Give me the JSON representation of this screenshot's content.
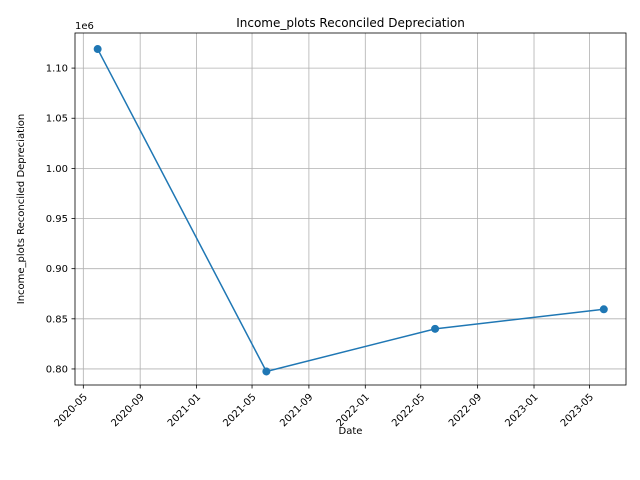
{
  "chart_data": {
    "type": "line",
    "title": "Income_plots Reconciled Depreciation",
    "xlabel": "Date",
    "ylabel": "Income_plots Reconciled Depreciation",
    "y_offset_label": "1e6",
    "x": [
      "2020-06-01",
      "2021-06-01",
      "2022-06-01",
      "2023-06-01"
    ],
    "series": [
      {
        "values": [
          1119000,
          797500,
          840000,
          859500
        ]
      }
    ],
    "xlim": [
      "2020-04-13",
      "2023-07-19"
    ],
    "ylim": [
      784000,
      1135000
    ],
    "x_ticks": [
      "2020-05-01",
      "2020-09-01",
      "2021-01-01",
      "2021-05-01",
      "2021-09-01",
      "2022-01-01",
      "2022-05-01",
      "2022-09-01",
      "2023-01-01",
      "2023-05-01"
    ],
    "x_tick_labels": [
      "2020-05",
      "2020-09",
      "2021-01",
      "2021-05",
      "2021-09",
      "2022-01",
      "2022-05",
      "2022-09",
      "2023-01",
      "2023-05"
    ],
    "y_ticks": [
      800000,
      850000,
      900000,
      950000,
      1000000,
      1050000,
      1100000
    ],
    "y_tick_labels": [
      "0.80",
      "0.85",
      "0.90",
      "0.95",
      "1.00",
      "1.05",
      "1.10"
    ],
    "grid": true,
    "line_color": "#1f77b4",
    "marker": "circle"
  }
}
